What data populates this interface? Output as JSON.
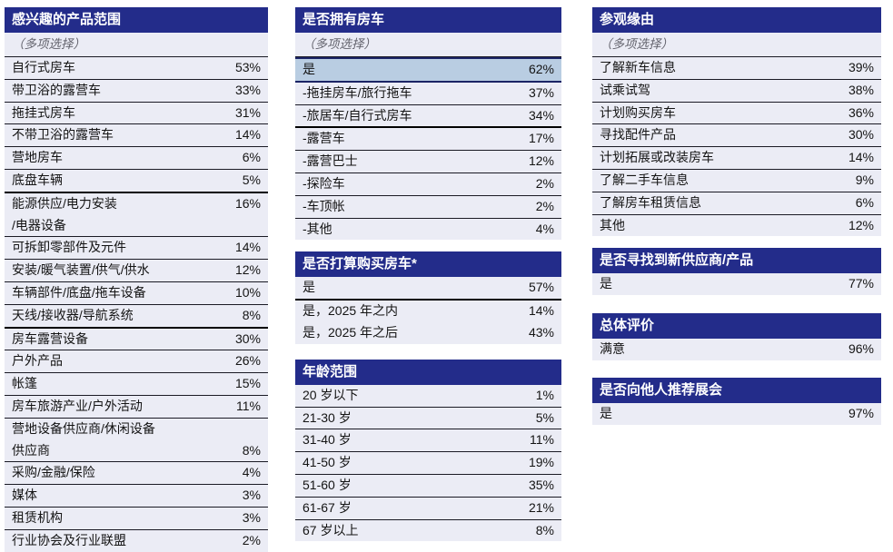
{
  "colors": {
    "header_bg": "#232C8A",
    "header_text": "#FFFFFF",
    "row_bg": "#EBECF5",
    "highlight_bg": "#B9CDE2",
    "highlight_border": "#1B2465",
    "border_thin": "#1A1A24",
    "border_thick": "#000000",
    "subtitle_text": "#62626C",
    "row_text": "#141414"
  },
  "tables": [
    {
      "title": "感兴趣的产品范围",
      "subtitle": "（多项选择）",
      "rows": [
        {
          "label": "自行式房车",
          "value": "53%"
        },
        {
          "label": "带卫浴的露营车",
          "value": "33%"
        },
        {
          "label": "拖挂式房车",
          "value": "31%"
        },
        {
          "label": "不带卫浴的露营车",
          "value": "14%"
        },
        {
          "label": "营地房车",
          "value": "6%"
        },
        {
          "label": "底盘车辆",
          "value": "5%",
          "border": "thick"
        },
        {
          "label": "能源供应/电力安装",
          "label2": "/电器设备",
          "value": "16%",
          "valuePos": "top"
        },
        {
          "label": "可拆卸零部件及元件",
          "value": "14%"
        },
        {
          "label": "安装/暖气装置/供气/供水",
          "value": "12%"
        },
        {
          "label": "车辆部件/底盘/拖车设备",
          "value": "10%"
        },
        {
          "label": "天线/接收器/导航系统",
          "value": "8%",
          "border": "thick"
        },
        {
          "label": "房车露营设备",
          "value": "30%"
        },
        {
          "label": "户外产品",
          "value": "26%"
        },
        {
          "label": "帐篷",
          "value": "15%"
        },
        {
          "label": "房车旅游产业/户外活动",
          "value": "11%"
        },
        {
          "label": "营地设备供应商/休闲设备",
          "label2": "供应商",
          "value": "8%",
          "valuePos": "bottom"
        },
        {
          "label": "采购/金融/保险",
          "value": "4%"
        },
        {
          "label": "媒体",
          "value": "3%"
        },
        {
          "label": "租赁机构",
          "value": "3%"
        },
        {
          "label": "行业协会及行业联盟",
          "value": "2%",
          "border": "none"
        }
      ]
    },
    {
      "title": "是否拥有房车",
      "subtitle": "（多项选择）",
      "rows": [
        {
          "label": "是",
          "value": "62%",
          "highlight": true
        },
        {
          "label": "-拖挂房车/旅行拖车",
          "value": "37%"
        },
        {
          "label": "-旅居车/自行式房车",
          "value": "34%",
          "border": "thick"
        },
        {
          "label": "-露营车",
          "value": "17%"
        },
        {
          "label": "-露营巴士",
          "value": "12%"
        },
        {
          "label": "-探险车",
          "value": "2%"
        },
        {
          "label": "-车顶帐",
          "value": "2%"
        },
        {
          "label": "-其他",
          "value": "4%",
          "border": "none"
        }
      ]
    },
    {
      "title": "是否打算购买房车*",
      "rows": [
        {
          "label": "是",
          "value": "57%",
          "border": "thick"
        },
        {
          "label": "是，2025 年之内",
          "value": "14%",
          "border": "none"
        },
        {
          "label": "是，2025 年之后",
          "value": "43%",
          "border": "none"
        }
      ]
    },
    {
      "title": "年龄范围",
      "rows": [
        {
          "label": "20 岁以下",
          "value": "1%"
        },
        {
          "label": "21-30 岁",
          "value": "5%"
        },
        {
          "label": "31-40 岁",
          "value": "11%"
        },
        {
          "label": "41-50 岁",
          "value": "19%"
        },
        {
          "label": "51-60 岁",
          "value": "35%"
        },
        {
          "label": "61-67 岁",
          "value": "21%"
        },
        {
          "label": "67 岁以上",
          "value": "8%",
          "border": "none"
        }
      ]
    },
    {
      "title": "参观缘由",
      "subtitle": "（多项选择）",
      "rows": [
        {
          "label": "了解新车信息",
          "value": "39%"
        },
        {
          "label": "试乘试驾",
          "value": "38%"
        },
        {
          "label": "计划购买房车",
          "value": "36%"
        },
        {
          "label": "寻找配件产品",
          "value": "30%"
        },
        {
          "label": "计划拓展或改装房车",
          "value": "14%"
        },
        {
          "label": "了解二手车信息",
          "value": "9%"
        },
        {
          "label": "了解房车租赁信息",
          "value": "6%"
        },
        {
          "label": "其他",
          "value": "12%",
          "border": "none"
        }
      ]
    },
    {
      "title": "是否寻找到新供应商/产品",
      "rows": [
        {
          "label": "是",
          "value": "77%",
          "border": "none"
        }
      ]
    },
    {
      "title": "总体评价",
      "rows": [
        {
          "label": "满意",
          "value": "96%",
          "border": "none"
        }
      ]
    },
    {
      "title": "是否向他人推荐展会",
      "rows": [
        {
          "label": "是",
          "value": "97%",
          "border": "none"
        }
      ]
    }
  ]
}
